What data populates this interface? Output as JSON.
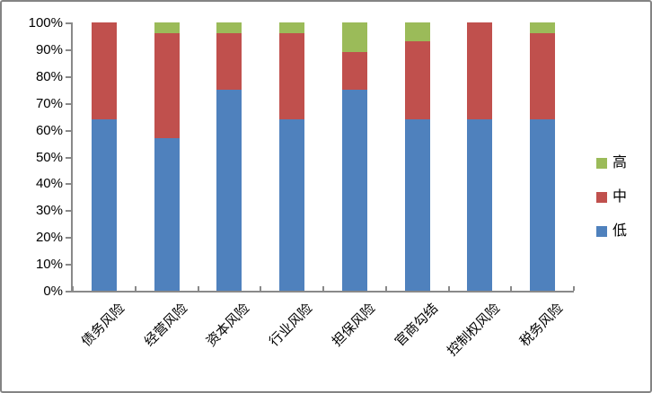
{
  "chart_data": {
    "type": "bar",
    "variant": "stacked-100-percent",
    "title": "",
    "xlabel": "",
    "ylabel": "",
    "categories": [
      "债务风险",
      "经营风险",
      "资本风险",
      "行业风险",
      "担保风险",
      "官商勾结",
      "控制权风险",
      "税务风险"
    ],
    "series": [
      {
        "name": "低",
        "color": "#4F81BD",
        "values": [
          64,
          57,
          75,
          64,
          75,
          64,
          64,
          64
        ]
      },
      {
        "name": "中",
        "color": "#C0504D",
        "values": [
          36,
          39,
          21,
          32,
          14,
          29,
          36,
          32
        ]
      },
      {
        "name": "高",
        "color": "#9BBB59",
        "values": [
          0,
          4,
          4,
          4,
          11,
          7,
          0,
          4
        ]
      }
    ],
    "legend": {
      "position": "right",
      "order": [
        "高",
        "中",
        "低"
      ]
    },
    "y_tick_labels": [
      "100%",
      "90%",
      "80%",
      "70%",
      "60%",
      "50%",
      "40%",
      "30%",
      "20%",
      "10%",
      "0%"
    ],
    "ylim": [
      0,
      100
    ],
    "grid": false,
    "axis_color": "#898989",
    "plot_background": "#ffffff"
  }
}
